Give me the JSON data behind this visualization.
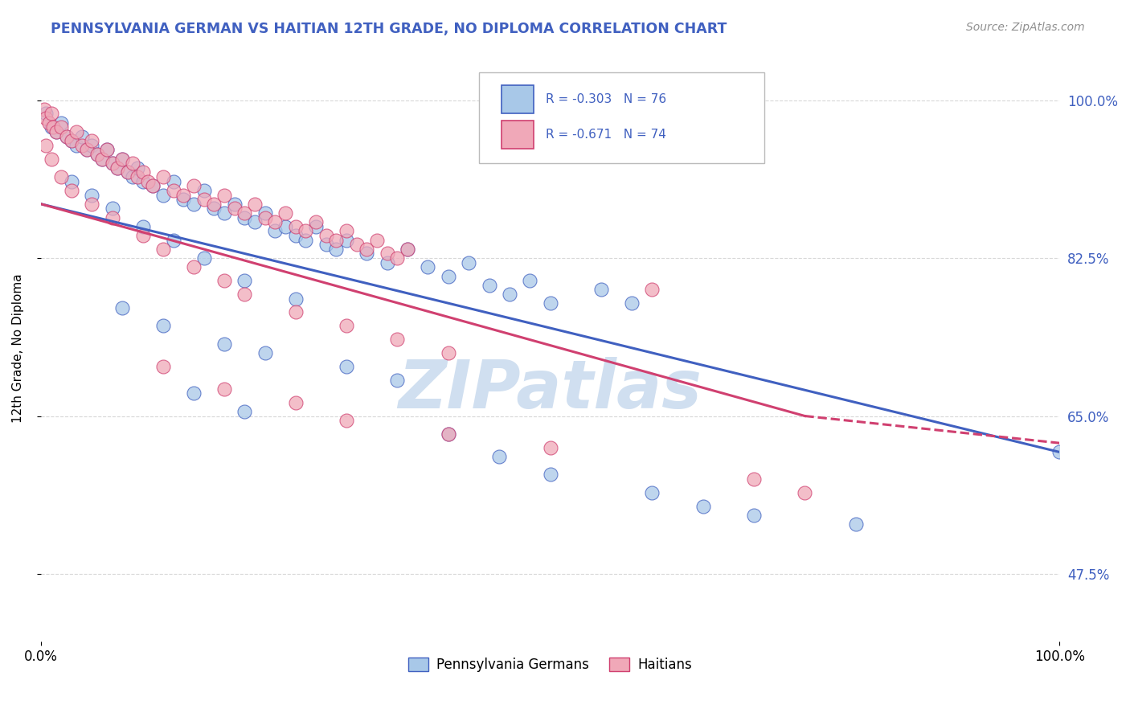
{
  "title": "PENNSYLVANIA GERMAN VS HAITIAN 12TH GRADE, NO DIPLOMA CORRELATION CHART",
  "source_text": "Source: ZipAtlas.com",
  "ylabel": "12th Grade, No Diploma",
  "legend_label1": "R = -0.303   N = 76",
  "legend_label2": "R = -0.671   N = 74",
  "legend_bottom1": "Pennsylvania Germans",
  "legend_bottom2": "Haitians",
  "blue_color": "#A8C8E8",
  "pink_color": "#F0A8B8",
  "blue_line_color": "#4060C0",
  "pink_line_color": "#D04070",
  "title_color": "#4060C0",
  "source_color": "#909090",
  "watermark_color": "#D0DFF0",
  "background_color": "#FFFFFF",
  "grid_color": "#D8D8D8",
  "blue_scatter": [
    [
      0.5,
      98.5
    ],
    [
      1.0,
      97.0
    ],
    [
      1.5,
      96.5
    ],
    [
      2.0,
      97.5
    ],
    [
      2.5,
      96.0
    ],
    [
      3.0,
      95.5
    ],
    [
      3.5,
      95.0
    ],
    [
      4.0,
      96.0
    ],
    [
      4.5,
      94.5
    ],
    [
      5.0,
      95.0
    ],
    [
      5.5,
      94.0
    ],
    [
      6.0,
      93.5
    ],
    [
      6.5,
      94.5
    ],
    [
      7.0,
      93.0
    ],
    [
      7.5,
      92.5
    ],
    [
      8.0,
      93.5
    ],
    [
      8.5,
      92.0
    ],
    [
      9.0,
      91.5
    ],
    [
      9.5,
      92.5
    ],
    [
      10.0,
      91.0
    ],
    [
      11.0,
      90.5
    ],
    [
      12.0,
      89.5
    ],
    [
      13.0,
      91.0
    ],
    [
      14.0,
      89.0
    ],
    [
      15.0,
      88.5
    ],
    [
      16.0,
      90.0
    ],
    [
      17.0,
      88.0
    ],
    [
      18.0,
      87.5
    ],
    [
      19.0,
      88.5
    ],
    [
      20.0,
      87.0
    ],
    [
      21.0,
      86.5
    ],
    [
      22.0,
      87.5
    ],
    [
      23.0,
      85.5
    ],
    [
      24.0,
      86.0
    ],
    [
      25.0,
      85.0
    ],
    [
      26.0,
      84.5
    ],
    [
      27.0,
      86.0
    ],
    [
      28.0,
      84.0
    ],
    [
      29.0,
      83.5
    ],
    [
      30.0,
      84.5
    ],
    [
      32.0,
      83.0
    ],
    [
      34.0,
      82.0
    ],
    [
      36.0,
      83.5
    ],
    [
      38.0,
      81.5
    ],
    [
      40.0,
      80.5
    ],
    [
      42.0,
      82.0
    ],
    [
      44.0,
      79.5
    ],
    [
      46.0,
      78.5
    ],
    [
      48.0,
      80.0
    ],
    [
      50.0,
      77.5
    ],
    [
      3.0,
      91.0
    ],
    [
      5.0,
      89.5
    ],
    [
      7.0,
      88.0
    ],
    [
      10.0,
      86.0
    ],
    [
      13.0,
      84.5
    ],
    [
      16.0,
      82.5
    ],
    [
      20.0,
      80.0
    ],
    [
      25.0,
      78.0
    ],
    [
      8.0,
      77.0
    ],
    [
      12.0,
      75.0
    ],
    [
      18.0,
      73.0
    ],
    [
      22.0,
      72.0
    ],
    [
      30.0,
      70.5
    ],
    [
      35.0,
      69.0
    ],
    [
      15.0,
      67.5
    ],
    [
      20.0,
      65.5
    ],
    [
      40.0,
      63.0
    ],
    [
      45.0,
      60.5
    ],
    [
      50.0,
      58.5
    ],
    [
      55.0,
      79.0
    ],
    [
      58.0,
      77.5
    ],
    [
      60.0,
      56.5
    ],
    [
      65.0,
      55.0
    ],
    [
      70.0,
      54.0
    ],
    [
      80.0,
      53.0
    ],
    [
      100.0,
      61.0
    ]
  ],
  "pink_scatter": [
    [
      0.3,
      99.0
    ],
    [
      0.5,
      98.0
    ],
    [
      0.8,
      97.5
    ],
    [
      1.0,
      98.5
    ],
    [
      1.2,
      97.0
    ],
    [
      1.5,
      96.5
    ],
    [
      2.0,
      97.0
    ],
    [
      2.5,
      96.0
    ],
    [
      3.0,
      95.5
    ],
    [
      3.5,
      96.5
    ],
    [
      4.0,
      95.0
    ],
    [
      4.5,
      94.5
    ],
    [
      5.0,
      95.5
    ],
    [
      5.5,
      94.0
    ],
    [
      6.0,
      93.5
    ],
    [
      6.5,
      94.5
    ],
    [
      7.0,
      93.0
    ],
    [
      7.5,
      92.5
    ],
    [
      8.0,
      93.5
    ],
    [
      8.5,
      92.0
    ],
    [
      9.0,
      93.0
    ],
    [
      9.5,
      91.5
    ],
    [
      10.0,
      92.0
    ],
    [
      10.5,
      91.0
    ],
    [
      11.0,
      90.5
    ],
    [
      12.0,
      91.5
    ],
    [
      13.0,
      90.0
    ],
    [
      14.0,
      89.5
    ],
    [
      15.0,
      90.5
    ],
    [
      16.0,
      89.0
    ],
    [
      17.0,
      88.5
    ],
    [
      18.0,
      89.5
    ],
    [
      19.0,
      88.0
    ],
    [
      20.0,
      87.5
    ],
    [
      21.0,
      88.5
    ],
    [
      22.0,
      87.0
    ],
    [
      23.0,
      86.5
    ],
    [
      24.0,
      87.5
    ],
    [
      25.0,
      86.0
    ],
    [
      26.0,
      85.5
    ],
    [
      27.0,
      86.5
    ],
    [
      28.0,
      85.0
    ],
    [
      29.0,
      84.5
    ],
    [
      30.0,
      85.5
    ],
    [
      31.0,
      84.0
    ],
    [
      32.0,
      83.5
    ],
    [
      33.0,
      84.5
    ],
    [
      34.0,
      83.0
    ],
    [
      35.0,
      82.5
    ],
    [
      36.0,
      83.5
    ],
    [
      3.0,
      90.0
    ],
    [
      5.0,
      88.5
    ],
    [
      7.0,
      87.0
    ],
    [
      10.0,
      85.0
    ],
    [
      12.0,
      83.5
    ],
    [
      15.0,
      81.5
    ],
    [
      18.0,
      80.0
    ],
    [
      20.0,
      78.5
    ],
    [
      25.0,
      76.5
    ],
    [
      30.0,
      75.0
    ],
    [
      35.0,
      73.5
    ],
    [
      40.0,
      72.0
    ],
    [
      12.0,
      70.5
    ],
    [
      18.0,
      68.0
    ],
    [
      25.0,
      66.5
    ],
    [
      30.0,
      64.5
    ],
    [
      40.0,
      63.0
    ],
    [
      50.0,
      61.5
    ],
    [
      60.0,
      79.0
    ],
    [
      70.0,
      58.0
    ],
    [
      75.0,
      56.5
    ],
    [
      0.5,
      95.0
    ],
    [
      1.0,
      93.5
    ],
    [
      2.0,
      91.5
    ]
  ],
  "blue_line": [
    [
      0,
      88.5
    ],
    [
      100,
      61.0
    ]
  ],
  "pink_line_solid": [
    [
      0,
      88.5
    ],
    [
      75,
      65.0
    ]
  ],
  "pink_line_dashed": [
    [
      75,
      65.0
    ],
    [
      100,
      62.0
    ]
  ],
  "xlim": [
    0,
    100
  ],
  "ylim": [
    40,
    105
  ],
  "yticks": [
    47.5,
    65.0,
    82.5,
    100.0
  ],
  "watermark": "ZIPatlas"
}
